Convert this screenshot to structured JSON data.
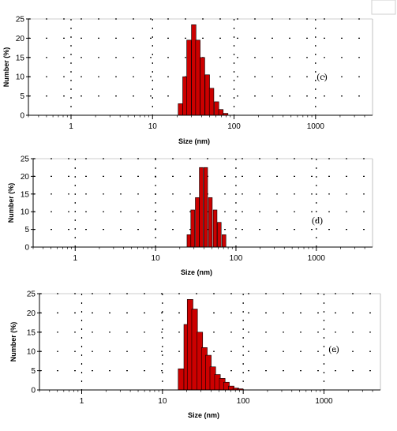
{
  "chart_data": [
    {
      "type": "bar",
      "panel_label": "(c)",
      "xlabel": "Size (nm)",
      "ylabel": "Number (%)",
      "xscale": "log",
      "xlim": [
        0.3,
        5000
      ],
      "ylim": [
        0,
        25
      ],
      "xticks": [
        "1",
        "10",
        "100",
        "1000"
      ],
      "yticks": [
        "0",
        "5",
        "10",
        "15",
        "20",
        "25"
      ],
      "grid": "dashed",
      "bar_color": "#cc0000",
      "x": [
        22,
        25,
        28,
        32,
        36,
        41,
        47,
        53,
        61,
        69,
        79
      ],
      "values": [
        3,
        10,
        19.5,
        23.5,
        19.5,
        15,
        10.5,
        7,
        3.5,
        1.5,
        0.5
      ]
    },
    {
      "type": "bar",
      "panel_label": "(d)",
      "xlabel": "Size (nm)",
      "ylabel": "Number (%)",
      "xscale": "log",
      "xlim": [
        0.3,
        5000
      ],
      "ylim": [
        0,
        25
      ],
      "xticks": [
        "1",
        "10",
        "100",
        "1000"
      ],
      "yticks": [
        "0",
        "5",
        "10",
        "15",
        "20",
        "25"
      ],
      "grid": "dashed",
      "bar_color": "#cc0000",
      "x": [
        26,
        29,
        33,
        37,
        42,
        48,
        55,
        62,
        71
      ],
      "values": [
        3.5,
        10.5,
        14,
        22.5,
        22.5,
        14,
        10.5,
        7,
        3.5
      ]
    },
    {
      "type": "bar",
      "panel_label": "(e)",
      "xlabel": "Size (nm)",
      "ylabel": "Number (%)",
      "xscale": "log",
      "xlim": [
        0.3,
        5000
      ],
      "ylim": [
        0,
        25
      ],
      "xticks": [
        "1",
        "10",
        "100",
        "1000"
      ],
      "yticks": [
        "0",
        "5",
        "10",
        "15",
        "20",
        "25"
      ],
      "grid": "dashed",
      "bar_color": "#cc0000",
      "x": [
        17,
        20,
        22,
        25,
        29,
        33,
        37,
        42,
        48,
        55,
        62,
        71,
        81,
        92
      ],
      "values": [
        5.5,
        17,
        23.5,
        21,
        15,
        11,
        9,
        6,
        4,
        3,
        2,
        1,
        0.5,
        0.3
      ]
    }
  ]
}
